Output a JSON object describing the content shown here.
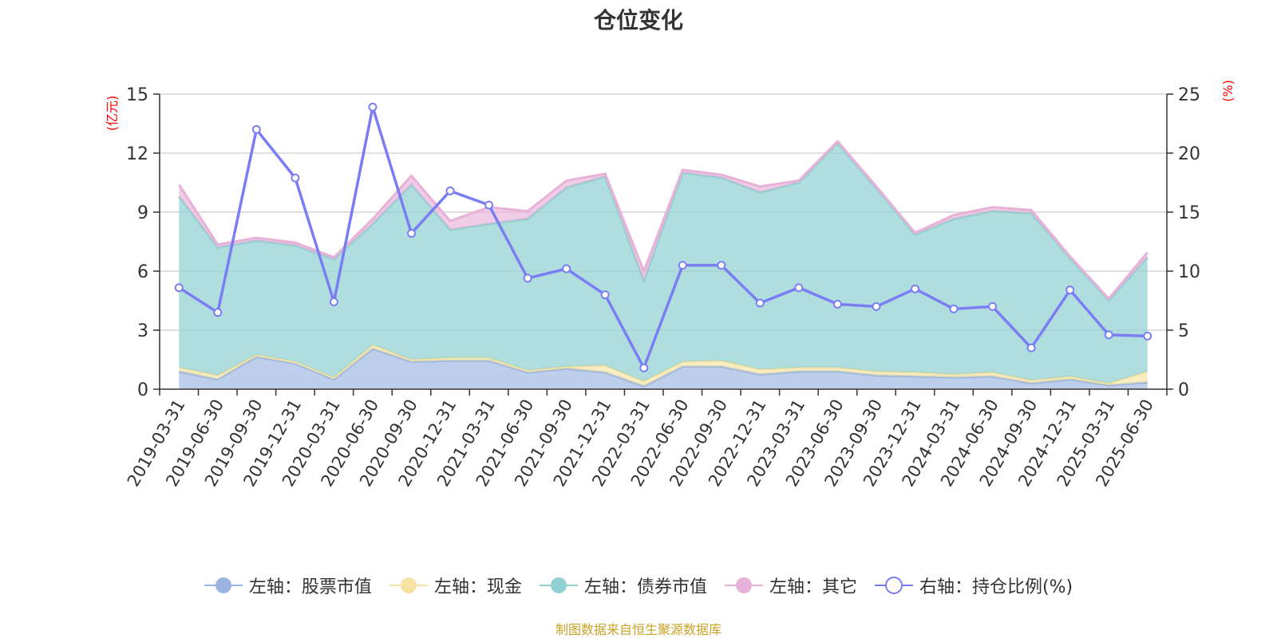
{
  "title": "仓位变化",
  "source": "制图数据来自恒生聚源数据库",
  "chart_data": {
    "type": "area",
    "title": "仓位变化",
    "categories": [
      "2019-03-31",
      "2019-06-30",
      "2019-09-30",
      "2019-12-31",
      "2020-03-31",
      "2020-06-30",
      "2020-09-30",
      "2020-12-31",
      "2021-03-31",
      "2021-06-30",
      "2021-09-30",
      "2021-12-31",
      "2022-03-31",
      "2022-06-30",
      "2022-09-30",
      "2022-12-31",
      "2023-03-31",
      "2023-06-30",
      "2023-09-30",
      "2023-12-31",
      "2024-03-31",
      "2024-06-30",
      "2024-09-30",
      "2024-12-31",
      "2025-03-31",
      "2025-06-30"
    ],
    "left_axis": {
      "label": "(亿元)",
      "ylim": [
        0,
        15
      ],
      "ticks": [
        0,
        3,
        6,
        9,
        12,
        15
      ],
      "label_color": "#ff0000"
    },
    "right_axis": {
      "label": "(%)",
      "ylim": [
        0,
        25
      ],
      "ticks": [
        0,
        5,
        10,
        15,
        20,
        25
      ],
      "label_color": "#ff0000"
    },
    "grid": true,
    "legend_position": "bottom",
    "stacked": true,
    "series": [
      {
        "name": "左轴：股票市值",
        "axis": "left",
        "kind": "area",
        "color": "#9bb5e0",
        "values": [
          0.9,
          0.5,
          1.65,
          1.3,
          0.5,
          2.05,
          1.4,
          1.45,
          1.45,
          0.85,
          1.05,
          0.85,
          0.15,
          1.15,
          1.15,
          0.75,
          0.9,
          0.9,
          0.7,
          0.65,
          0.6,
          0.65,
          0.3,
          0.5,
          0.2,
          0.35
        ]
      },
      {
        "name": "左轴：现金",
        "axis": "left",
        "kind": "area",
        "color": "#f6e3a3",
        "values": [
          0.2,
          0.2,
          0.1,
          0.1,
          0.1,
          0.2,
          0.1,
          0.15,
          0.15,
          0.1,
          0.1,
          0.35,
          0.25,
          0.25,
          0.3,
          0.25,
          0.2,
          0.2,
          0.2,
          0.2,
          0.15,
          0.2,
          0.15,
          0.15,
          0.1,
          0.55
        ]
      },
      {
        "name": "左轴：债券市值",
        "axis": "left",
        "kind": "area",
        "color": "#91d1d3",
        "values": [
          8.7,
          6.5,
          5.8,
          5.9,
          6.0,
          6.15,
          8.9,
          6.5,
          6.8,
          7.7,
          9.1,
          9.6,
          5.1,
          9.6,
          9.3,
          9.0,
          9.4,
          11.4,
          9.3,
          7.0,
          7.9,
          8.2,
          8.5,
          6.0,
          4.2,
          5.8
        ]
      },
      {
        "name": "左轴：其它",
        "axis": "left",
        "kind": "area",
        "color": "#e8b1d8",
        "values": [
          0.6,
          0.15,
          0.15,
          0.15,
          0.1,
          0.25,
          0.45,
          0.45,
          0.85,
          0.4,
          0.35,
          0.15,
          0.5,
          0.15,
          0.15,
          0.3,
          0.1,
          0.1,
          0.1,
          0.1,
          0.2,
          0.2,
          0.15,
          0.1,
          0.1,
          0.25
        ]
      },
      {
        "name": "右轴：持仓比例(%)",
        "axis": "right",
        "kind": "line",
        "color": "#7b7ef3",
        "values": [
          8.6,
          6.5,
          22.0,
          17.9,
          7.4,
          23.9,
          13.2,
          16.8,
          15.6,
          9.4,
          10.2,
          8.0,
          1.8,
          10.5,
          10.5,
          7.3,
          8.6,
          7.2,
          7.0,
          8.5,
          6.8,
          7.0,
          3.5,
          8.4,
          4.6,
          4.5
        ]
      }
    ]
  }
}
